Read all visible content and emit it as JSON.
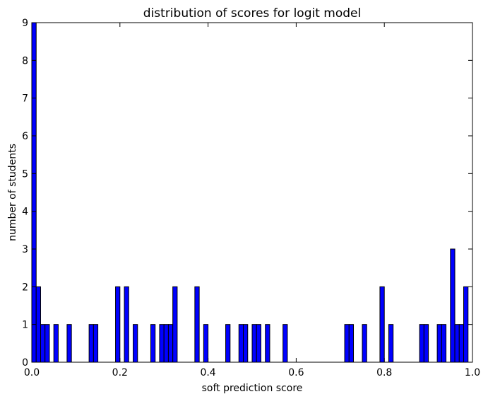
{
  "chart_data": {
    "type": "bar",
    "title": "distribution of scores for logit model",
    "xlabel": "soft prediction score",
    "ylabel": "number of students",
    "xlim": [
      0.0,
      1.0
    ],
    "ylim": [
      0,
      9
    ],
    "x_ticks": [
      "0.0",
      "0.2",
      "0.4",
      "0.6",
      "0.8",
      "1.0"
    ],
    "y_ticks": [
      "0",
      "1",
      "2",
      "3",
      "4",
      "5",
      "6",
      "7",
      "8",
      "9"
    ],
    "bin_width": 0.01,
    "grid": false,
    "bar_color": "#0000ff",
    "edge_color": "#000000",
    "bins": [
      {
        "x": 0.0,
        "count": 9
      },
      {
        "x": 0.01,
        "count": 2
      },
      {
        "x": 0.02,
        "count": 1
      },
      {
        "x": 0.03,
        "count": 1
      },
      {
        "x": 0.05,
        "count": 1
      },
      {
        "x": 0.08,
        "count": 1
      },
      {
        "x": 0.13,
        "count": 1
      },
      {
        "x": 0.14,
        "count": 1
      },
      {
        "x": 0.19,
        "count": 2
      },
      {
        "x": 0.21,
        "count": 2
      },
      {
        "x": 0.23,
        "count": 1
      },
      {
        "x": 0.27,
        "count": 1
      },
      {
        "x": 0.29,
        "count": 1
      },
      {
        "x": 0.3,
        "count": 1
      },
      {
        "x": 0.31,
        "count": 1
      },
      {
        "x": 0.32,
        "count": 2
      },
      {
        "x": 0.37,
        "count": 2
      },
      {
        "x": 0.39,
        "count": 1
      },
      {
        "x": 0.44,
        "count": 1
      },
      {
        "x": 0.47,
        "count": 1
      },
      {
        "x": 0.48,
        "count": 1
      },
      {
        "x": 0.5,
        "count": 1
      },
      {
        "x": 0.51,
        "count": 1
      },
      {
        "x": 0.53,
        "count": 1
      },
      {
        "x": 0.57,
        "count": 1
      },
      {
        "x": 0.71,
        "count": 1
      },
      {
        "x": 0.72,
        "count": 1
      },
      {
        "x": 0.75,
        "count": 1
      },
      {
        "x": 0.79,
        "count": 2
      },
      {
        "x": 0.81,
        "count": 1
      },
      {
        "x": 0.88,
        "count": 1
      },
      {
        "x": 0.89,
        "count": 1
      },
      {
        "x": 0.92,
        "count": 1
      },
      {
        "x": 0.93,
        "count": 1
      },
      {
        "x": 0.95,
        "count": 3
      },
      {
        "x": 0.96,
        "count": 1
      },
      {
        "x": 0.97,
        "count": 1
      },
      {
        "x": 0.98,
        "count": 2
      }
    ]
  }
}
